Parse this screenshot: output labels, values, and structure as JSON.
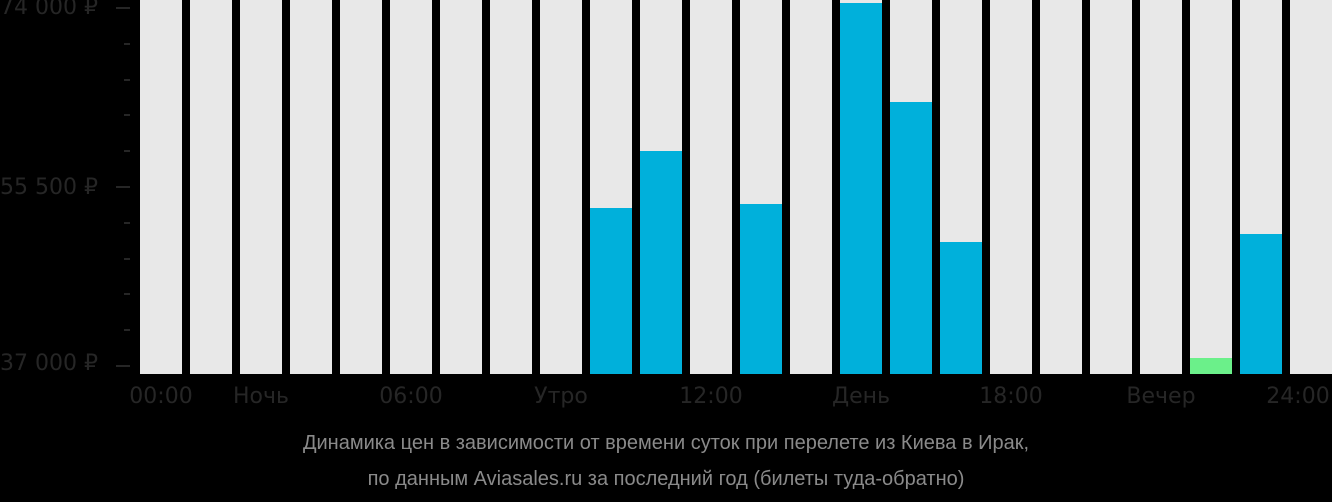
{
  "chart_data": {
    "type": "bar",
    "title": "Динамика цен в зависимости от времени суток при перелете из Киева в Ирак, по данным Aviasales.ru за последний год (билеты туда-обратно)",
    "xlabel": "",
    "ylabel": "",
    "ylim": [
      37000,
      74000
    ],
    "grid": false,
    "legend": null,
    "y_ticks": [
      "74 000 ₽",
      "55 500 ₽",
      "37 000 ₽"
    ],
    "x_ticks": [
      "00:00",
      "Ночь",
      "06:00",
      "Утро",
      "12:00",
      "День",
      "18:00",
      "Вечер",
      "24:00"
    ],
    "categories": [
      "0",
      "1",
      "2",
      "3",
      "4",
      "5",
      "6",
      "7",
      "8",
      "9",
      "10",
      "11",
      "12",
      "13",
      "14",
      "15",
      "16",
      "17",
      "18",
      "19",
      "20",
      "21",
      "22",
      "23"
    ],
    "values": [
      null,
      null,
      null,
      null,
      null,
      null,
      null,
      null,
      null,
      53350,
      59250,
      null,
      53750,
      null,
      74500,
      64300,
      49800,
      null,
      null,
      null,
      null,
      37800,
      50650,
      null
    ],
    "highlight": {
      "index": 21,
      "label": "cheapest",
      "color": "#6bf08a"
    },
    "colors": {
      "bar": "#00b0db",
      "cheapest": "#6bf08a",
      "column_bg": "#e8e8e8",
      "background": "#000000",
      "axis_text": "#262626",
      "caption_text": "#8a8a8a"
    }
  },
  "yaxis": {
    "top": "74 000 ₽",
    "mid": "55 500 ₽",
    "bottom": "37 000 ₽"
  },
  "xaxis": {
    "l0": "00:00",
    "l1": "Ночь",
    "l2": "06:00",
    "l3": "Утро",
    "l4": "12:00",
    "l5": "День",
    "l6": "18:00",
    "l7": "Вечер",
    "l8": "24:00"
  },
  "caption": {
    "line1": "Динамика цен в зависимости от времени суток при перелете из Киева в Ирак,",
    "line2": "по данным Aviasales.ru за последний год (билеты туда-обратно)"
  }
}
